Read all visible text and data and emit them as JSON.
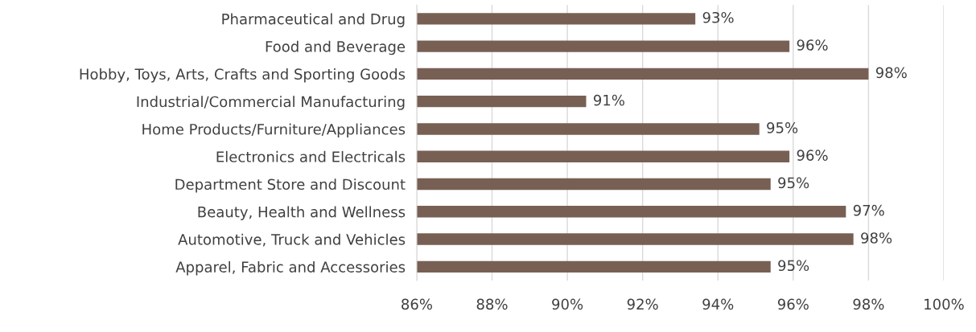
{
  "chart_data": {
    "type": "bar",
    "orientation": "horizontal",
    "categories": [
      "Pharmaceutical and Drug",
      "Food and Beverage",
      "Hobby, Toys, Arts, Crafts and Sporting Goods",
      "Industrial/Commercial Manufacturing",
      "Home Products/Furniture/Appliances",
      "Electronics and Electricals",
      "Department Store and Discount",
      "Beauty, Health and Wellness",
      "Automotive, Truck and Vehicles",
      "Apparel, Fabric and Accessories"
    ],
    "values": [
      93.4,
      95.9,
      98.0,
      90.5,
      95.1,
      95.9,
      95.4,
      97.4,
      97.6,
      95.4
    ],
    "value_labels": [
      "93%",
      "96%",
      "98%",
      "91%",
      "95%",
      "96%",
      "95%",
      "97%",
      "98%",
      "95%"
    ],
    "color": "#785f54",
    "xlim": [
      86,
      100
    ],
    "xticks": [
      {
        "value": 86,
        "label": "86%"
      },
      {
        "value": 88,
        "label": "88%"
      },
      {
        "value": 90,
        "label": "90%"
      },
      {
        "value": 92,
        "label": "92%"
      },
      {
        "value": 94,
        "label": "94%"
      },
      {
        "value": 96,
        "label": "96%"
      },
      {
        "value": 98,
        "label": "98%"
      },
      {
        "value": 100,
        "label": "100%"
      }
    ],
    "grid": "x"
  }
}
